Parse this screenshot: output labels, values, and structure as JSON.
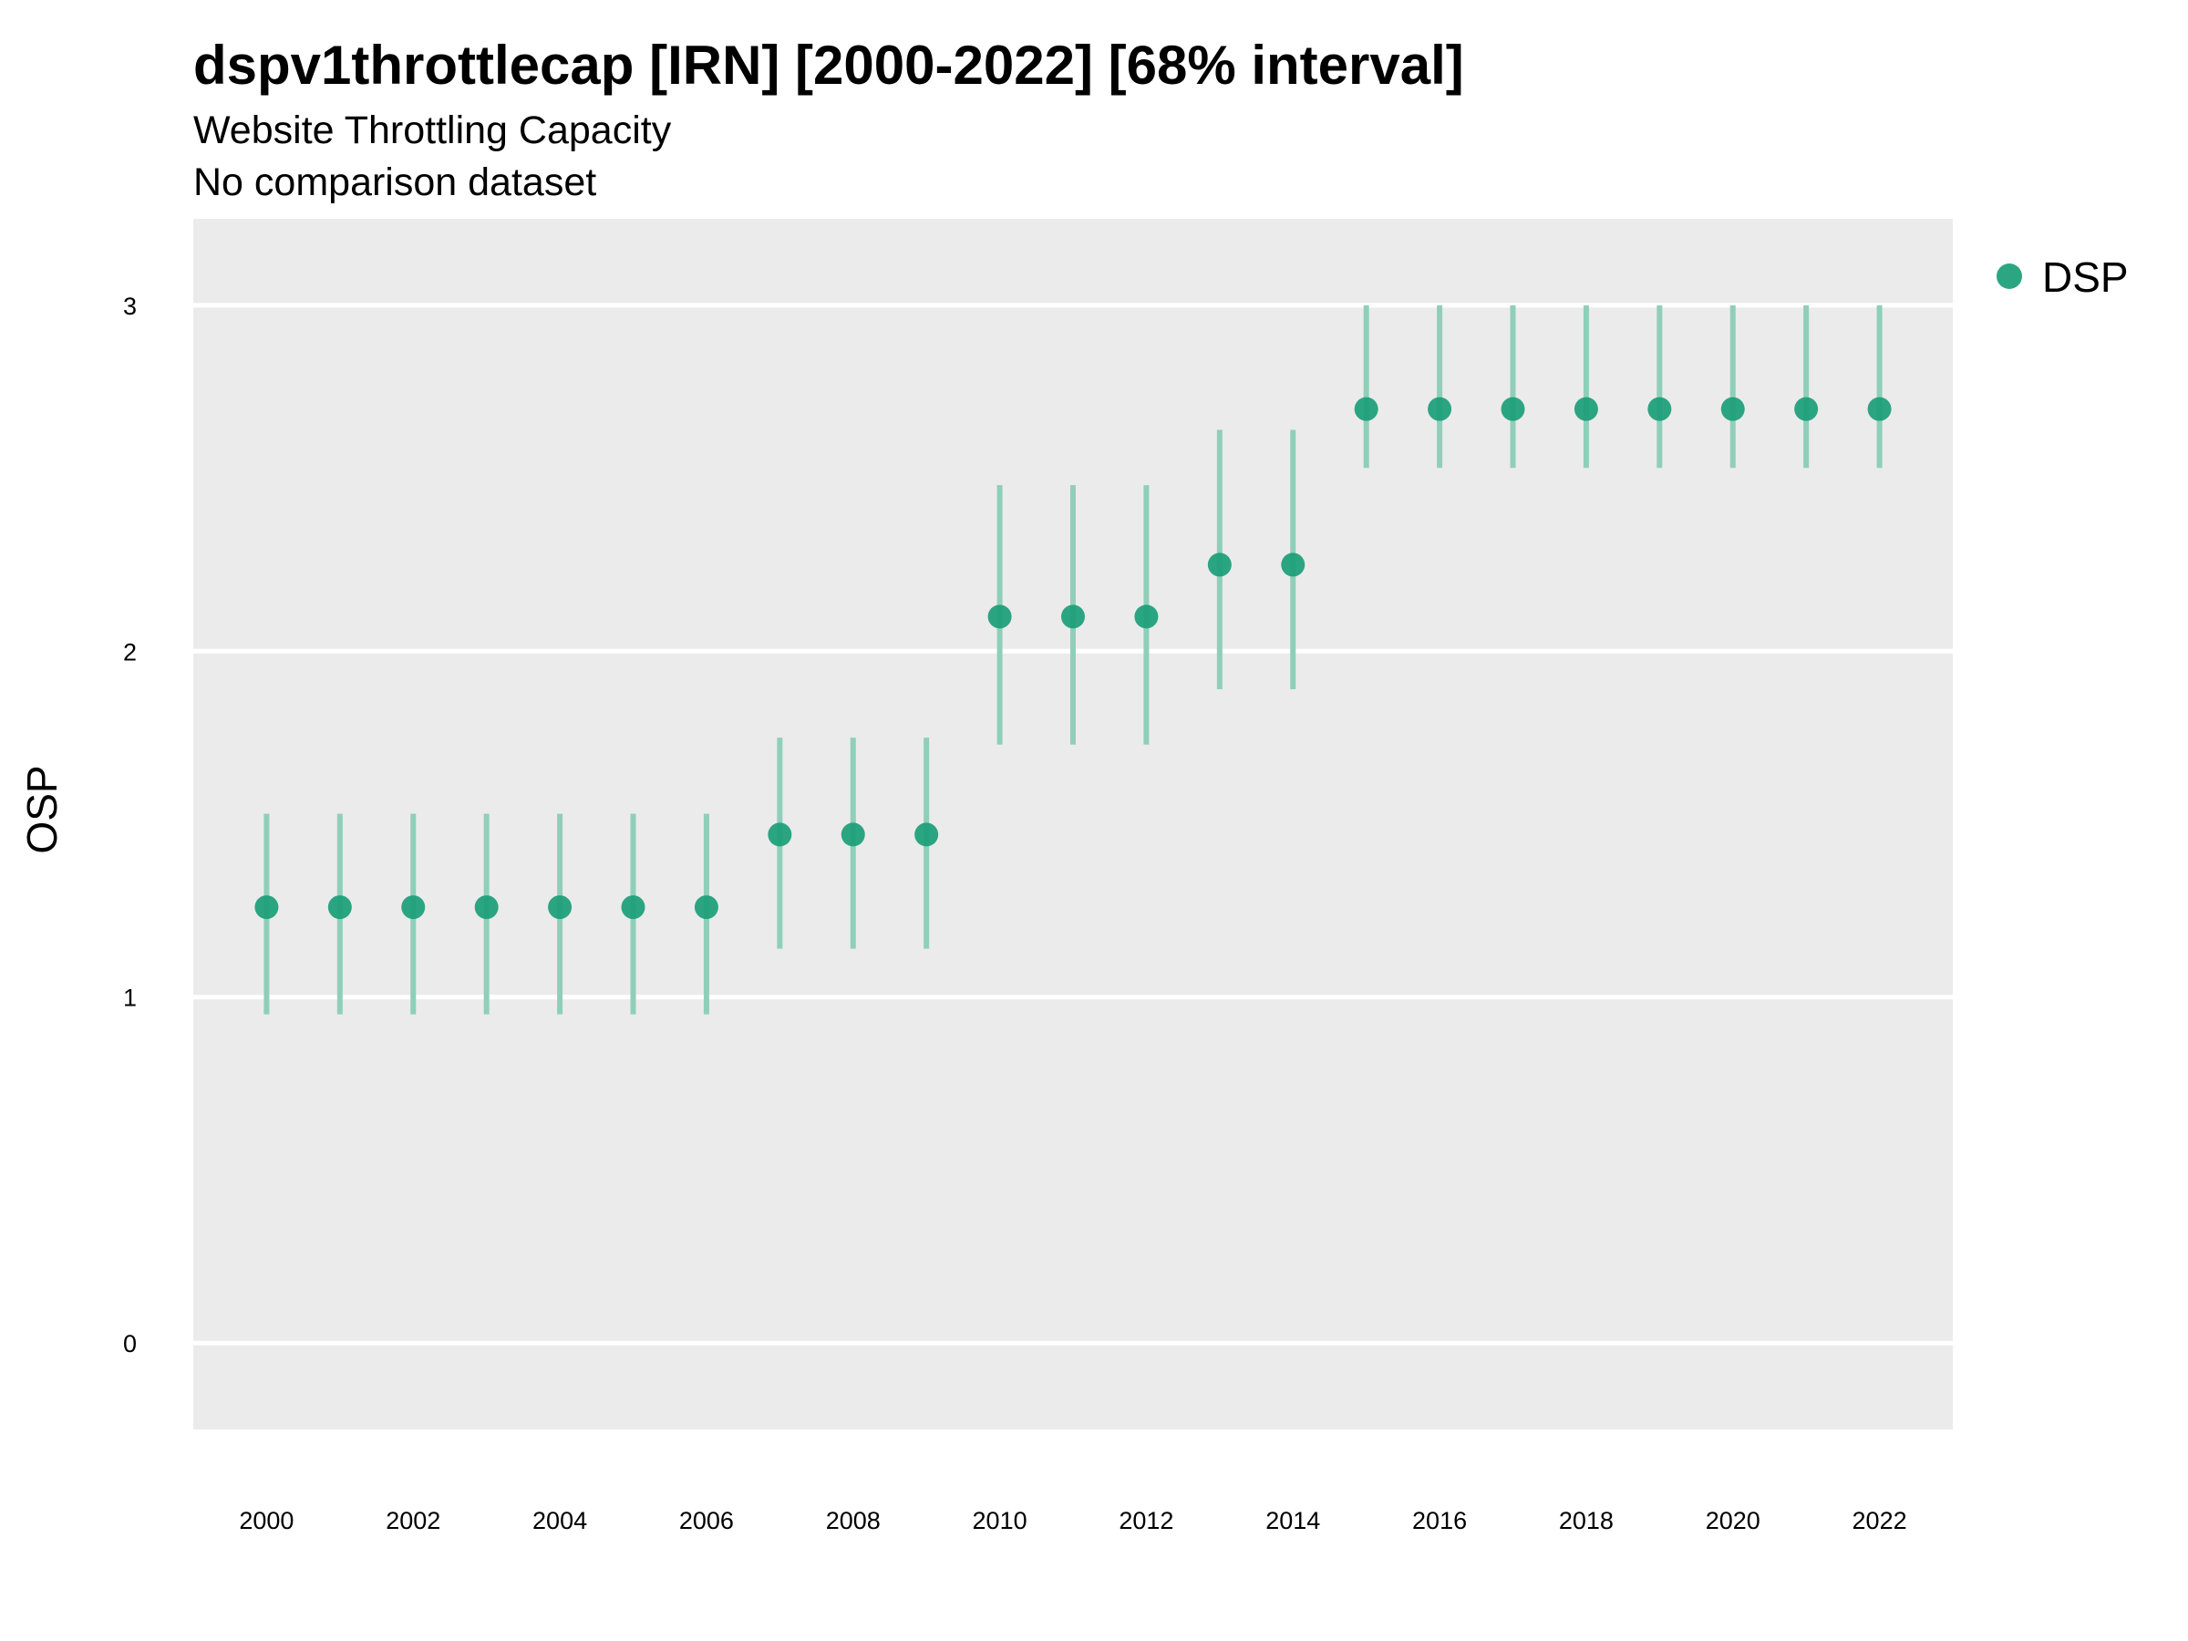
{
  "chart_data": {
    "type": "scatter",
    "title": "dspv1throttlecap [IRN] [2000-2022] [68% interval]",
    "subtitle": "Website Throttling Capacity",
    "subtitle2": "No comparison dataset",
    "xlabel": "",
    "ylabel": "OSP",
    "xlim": [
      1999,
      2023
    ],
    "ylim": [
      -0.25,
      3.25
    ],
    "yticks": [
      0,
      1,
      2,
      3
    ],
    "xticks": [
      2000,
      2002,
      2004,
      2006,
      2008,
      2010,
      2012,
      2014,
      2016,
      2018,
      2020,
      2022
    ],
    "grid": true,
    "legend_position": "right",
    "colors": {
      "point": "#1a9e77",
      "interval": "#8fcfba",
      "panel": "#ebebeb",
      "grid": "#ffffff"
    },
    "series": [
      {
        "name": "DSP",
        "x": [
          2000,
          2001,
          2002,
          2003,
          2004,
          2005,
          2006,
          2007,
          2008,
          2009,
          2010,
          2011,
          2012,
          2013,
          2014,
          2015,
          2016,
          2017,
          2018,
          2019,
          2020,
          2021,
          2022
        ],
        "y": [
          1.26,
          1.26,
          1.26,
          1.26,
          1.26,
          1.26,
          1.26,
          1.47,
          1.47,
          1.47,
          2.1,
          2.1,
          2.1,
          2.25,
          2.25,
          2.7,
          2.7,
          2.7,
          2.7,
          2.7,
          2.7,
          2.7,
          2.7
        ],
        "lower": [
          0.95,
          0.95,
          0.95,
          0.95,
          0.95,
          0.95,
          0.95,
          1.14,
          1.14,
          1.14,
          1.73,
          1.73,
          1.73,
          1.89,
          1.89,
          2.53,
          2.53,
          2.53,
          2.53,
          2.53,
          2.53,
          2.53,
          2.53
        ],
        "upper": [
          1.53,
          1.53,
          1.53,
          1.53,
          1.53,
          1.53,
          1.53,
          1.75,
          1.75,
          1.75,
          2.48,
          2.48,
          2.48,
          2.64,
          2.64,
          3.0,
          3.0,
          3.0,
          3.0,
          3.0,
          3.0,
          3.0,
          3.0
        ]
      }
    ]
  }
}
